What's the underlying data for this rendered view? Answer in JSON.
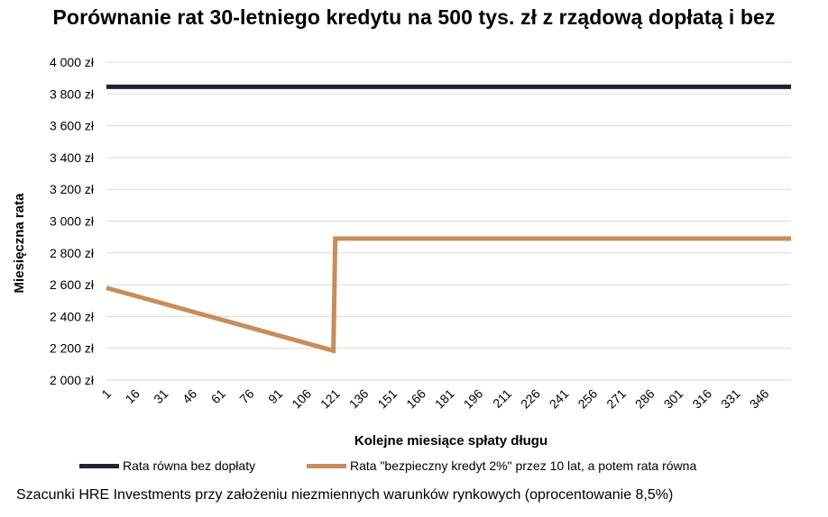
{
  "title": "Porównanie rat 30-letniego kredytu na 500 tys. zł z rządową dopłatą i bez",
  "note": "Szacunki HRE Investments przy założeniu niezmiennych warunków rynkowych (oprocentowanie 8,5%)",
  "colors": {
    "series_flat": "#1f2433",
    "series_subsidy": "#c98c5a",
    "grid": "#d9d9d9"
  },
  "chart_data": {
    "type": "line",
    "title": "Porównanie rat 30-letniego kredytu na 500 tys. zł z rządową dopłatą i bez",
    "xlabel": "Kolejne miesiące spłaty długu",
    "ylabel": "Miesięczna rata",
    "ylim": [
      2000,
      4000
    ],
    "xlim": [
      1,
      360
    ],
    "y_ticks": [
      2000,
      2200,
      2400,
      2600,
      2800,
      3000,
      3200,
      3400,
      3600,
      3800,
      4000
    ],
    "y_tick_labels": [
      "2 000 zł",
      "2 200 zł",
      "2 400 zł",
      "2 600 zł",
      "2 800 zł",
      "3 000 zł",
      "3 200 zł",
      "3 400 zł",
      "3 600 zł",
      "3 800 zł",
      "4 000 zł"
    ],
    "x_ticks": [
      1,
      16,
      31,
      46,
      61,
      76,
      91,
      106,
      121,
      136,
      151,
      166,
      181,
      196,
      211,
      226,
      241,
      256,
      271,
      286,
      301,
      316,
      331,
      346
    ],
    "grid": true,
    "legend_position": "bottom",
    "series": [
      {
        "name": "Rata równa bez dopłaty",
        "x": [
          1,
          360
        ],
        "values": [
          3845,
          3845
        ]
      },
      {
        "name": "Rata \"bezpieczny kredyt 2%\" przez 10 lat, a potem rata równa",
        "x": [
          1,
          120,
          121,
          360
        ],
        "values": [
          2580,
          2185,
          2890,
          2890
        ]
      }
    ]
  }
}
